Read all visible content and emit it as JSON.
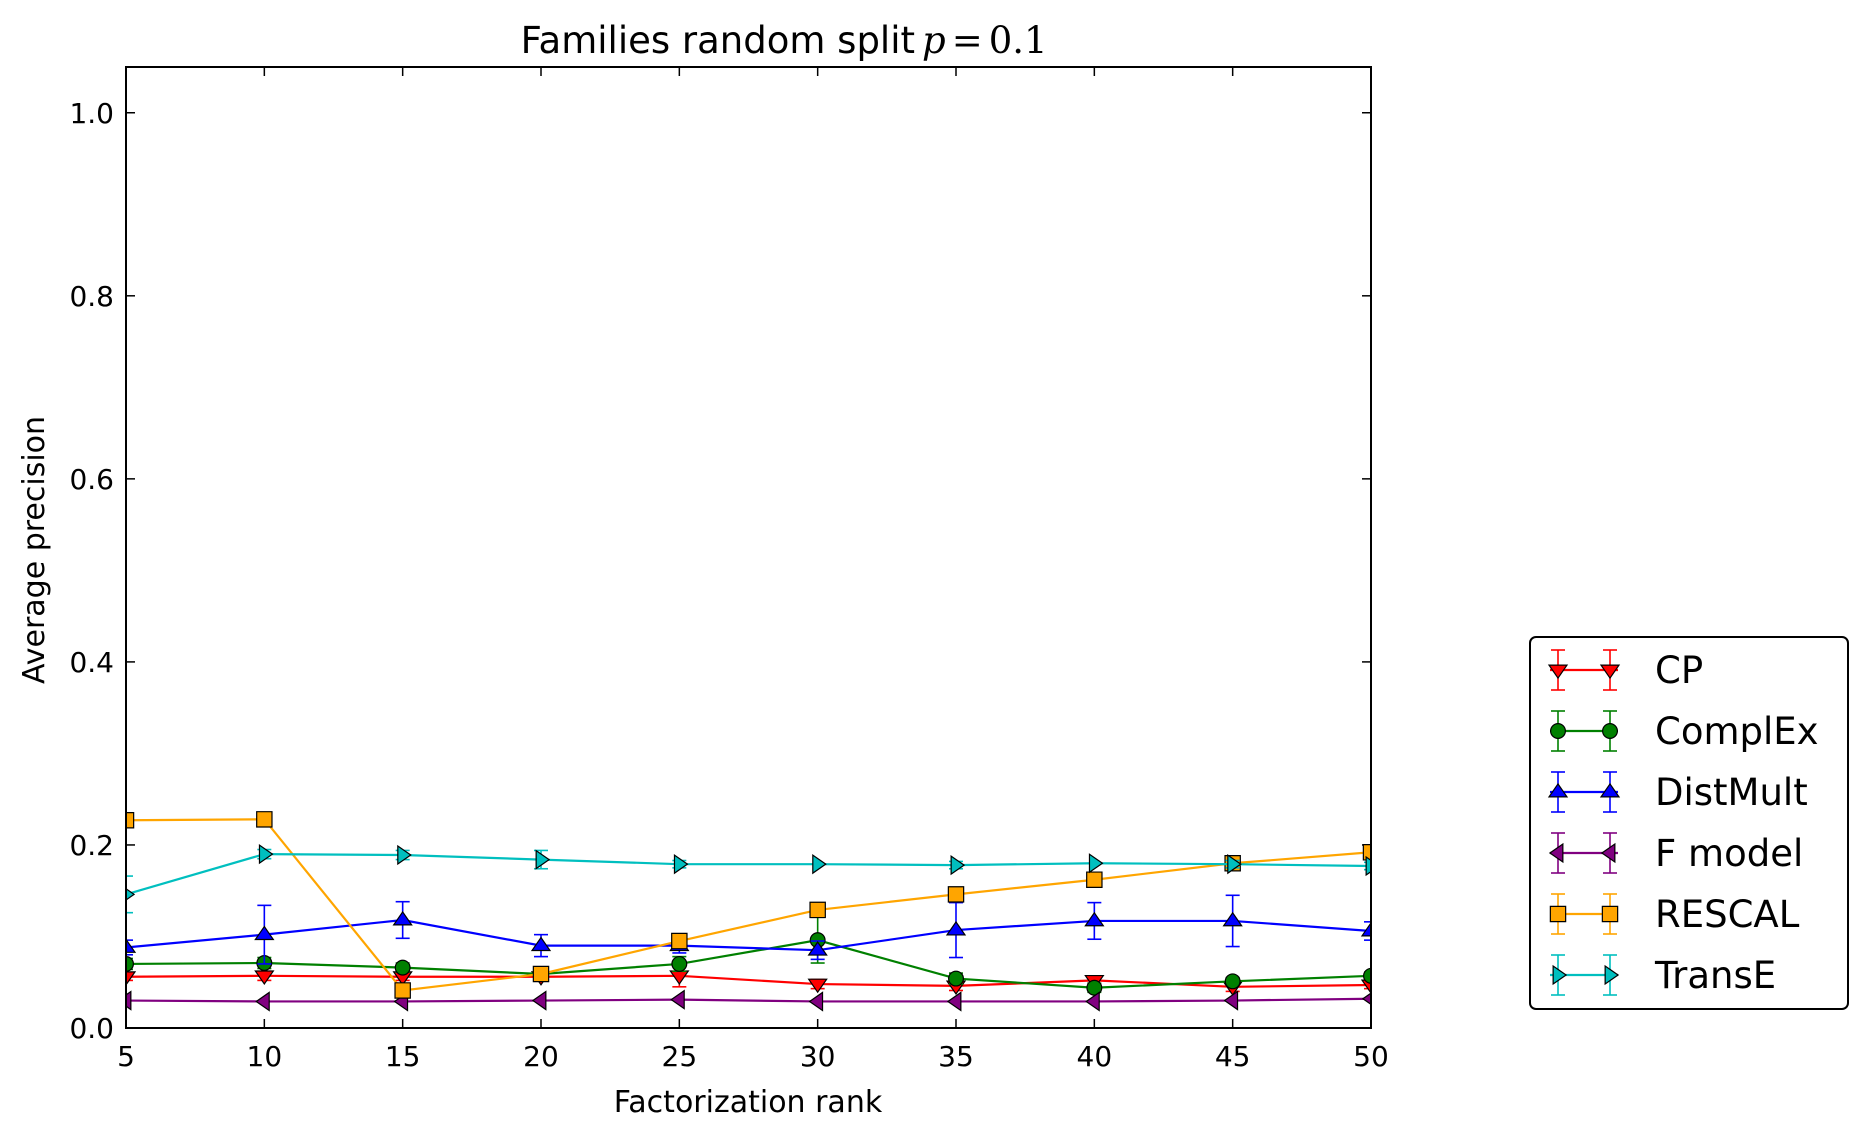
{
  "chart_data": {
    "type": "line",
    "title": "Families random split",
    "title_math": {
      "var": "p",
      "eq": "=",
      "val": "0.1"
    },
    "xlabel": "Factorization rank",
    "ylabel": "Average precision",
    "xlim": [
      5,
      50
    ],
    "ylim": [
      0.0,
      1.05
    ],
    "x": [
      5,
      10,
      15,
      20,
      25,
      30,
      35,
      40,
      45,
      50
    ],
    "x_ticks": [
      "5",
      "10",
      "15",
      "20",
      "25",
      "30",
      "35",
      "40",
      "45",
      "50"
    ],
    "y_tick_values": [
      0.0,
      0.2,
      0.4,
      0.6,
      0.8,
      1.0
    ],
    "y_ticks": [
      "0.0",
      "0.2",
      "0.4",
      "0.6",
      "0.8",
      "1.0"
    ],
    "grid": false,
    "legend_position": "right, outside plot, lower",
    "series": [
      {
        "name": "CP",
        "color": "#ff0000",
        "marker": "triangle-down",
        "values": [
          0.056,
          0.057,
          0.056,
          0.056,
          0.057,
          0.048,
          0.046,
          0.052,
          0.045,
          0.047
        ],
        "errors": [
          0.004,
          0.005,
          0.004,
          0.004,
          0.012,
          0.005,
          0.005,
          0.005,
          0.005,
          0.004
        ]
      },
      {
        "name": "ComplEx",
        "color": "#008000",
        "marker": "circle",
        "values": [
          0.07,
          0.071,
          0.066,
          0.059,
          0.07,
          0.096,
          0.054,
          0.044,
          0.051,
          0.057
        ],
        "errors": [
          0.006,
          0.006,
          0.005,
          0.004,
          0.008,
          0.025,
          0.006,
          0.005,
          0.004,
          0.004
        ]
      },
      {
        "name": "DistMult",
        "color": "#0000ff",
        "marker": "triangle-up",
        "values": [
          0.088,
          0.102,
          0.118,
          0.09,
          0.09,
          0.085,
          0.107,
          0.117,
          0.117,
          0.106
        ],
        "errors": [
          0.008,
          0.032,
          0.02,
          0.012,
          0.008,
          0.01,
          0.03,
          0.02,
          0.028,
          0.01
        ]
      },
      {
        "name": "F model",
        "color": "#800080",
        "marker": "triangle-left",
        "values": [
          0.03,
          0.029,
          0.029,
          0.03,
          0.031,
          0.029,
          0.029,
          0.029,
          0.03,
          0.032
        ],
        "errors": [
          0.002,
          0.002,
          0.002,
          0.002,
          0.002,
          0.002,
          0.002,
          0.002,
          0.002,
          0.002
        ]
      },
      {
        "name": "RESCAL",
        "color": "#ffa500",
        "marker": "square",
        "values": [
          0.227,
          0.228,
          0.041,
          0.059,
          0.095,
          0.129,
          0.146,
          0.162,
          0.18,
          0.192
        ],
        "errors": [
          0.004,
          0.004,
          0.004,
          0.004,
          0.006,
          0.005,
          0.005,
          0.004,
          0.004,
          0.004
        ]
      },
      {
        "name": "TransE",
        "color": "#00bfbf",
        "marker": "triangle-right",
        "values": [
          0.146,
          0.19,
          0.189,
          0.184,
          0.179,
          0.179,
          0.178,
          0.18,
          0.179,
          0.177
        ],
        "errors": [
          0.02,
          0.005,
          0.005,
          0.01,
          0.004,
          0.003,
          0.004,
          0.003,
          0.004,
          0.004
        ]
      }
    ]
  }
}
